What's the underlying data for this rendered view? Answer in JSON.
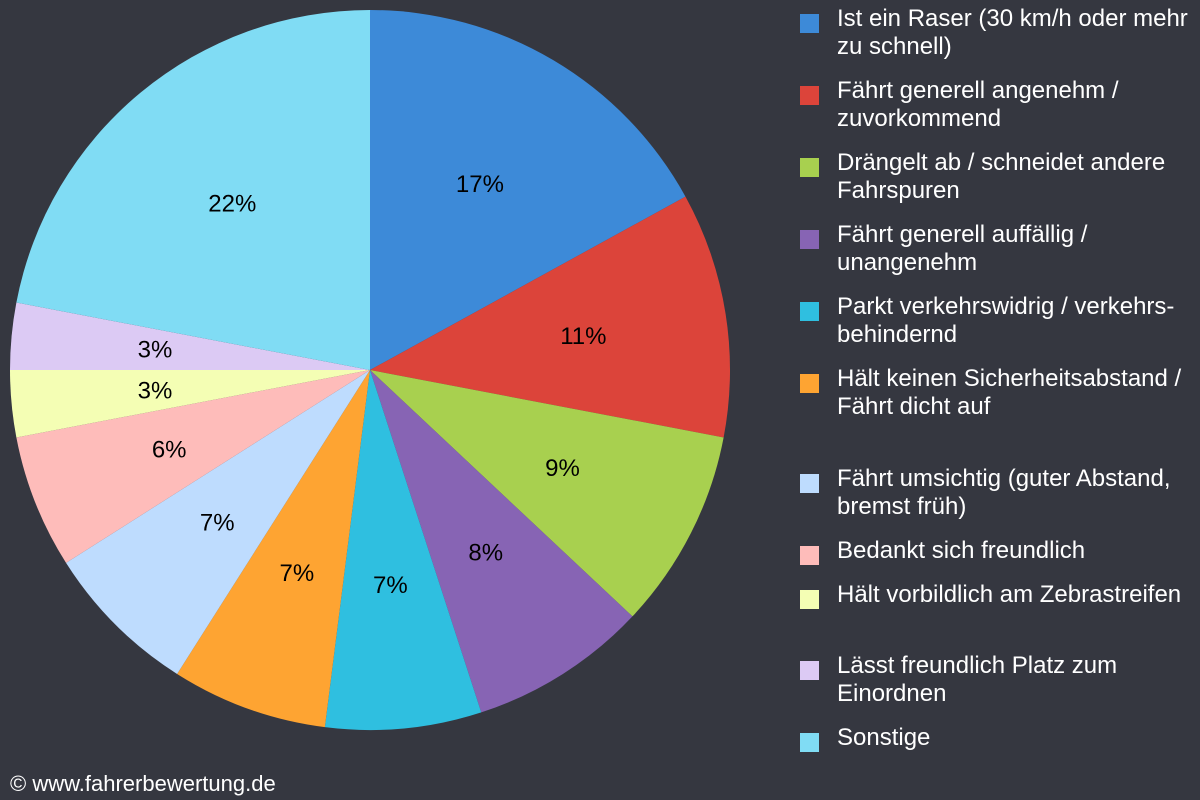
{
  "chart_data": {
    "type": "pie",
    "title": "",
    "legend_position": "right",
    "slices": [
      {
        "name": "Ist ein Raser (30 km/h oder mehr zu schnell)",
        "value": 17,
        "label": "17%",
        "color": "#3d8ad8"
      },
      {
        "name": "Fährt generell angenehm / zuvorkommend",
        "value": 11,
        "label": "11%",
        "color": "#dc443a"
      },
      {
        "name": "Drängelt ab / schneidet andere Fahrspuren",
        "value": 9,
        "label": "9%",
        "color": "#a8d04f"
      },
      {
        "name": "Fährt generell auffällig / unangenehm",
        "value": 8,
        "label": "8%",
        "color": "#8764b4"
      },
      {
        "name": "Parkt verkehrswidrig / verkehrs-behindernd",
        "value": 7,
        "label": "7%",
        "color": "#2fbfe0"
      },
      {
        "name": "Hält keinen Sicherheitsabstand / Fährt dicht auf",
        "value": 7,
        "label": "7%",
        "color": "#fea432"
      },
      {
        "name": "Fährt umsichtig (guter Abstand, bremst früh)",
        "value": 7,
        "label": "7%",
        "color": "#bedcfe"
      },
      {
        "name": "Bedankt sich freundlich",
        "value": 6,
        "label": "6%",
        "color": "#febcba"
      },
      {
        "name": "Hält vorbildlich am Zebrastreifen",
        "value": 3,
        "label": "3%",
        "color": "#f4feb4"
      },
      {
        "name": "Lässt freundlich Platz zum Einordnen",
        "value": 3,
        "label": "3%",
        "color": "#dccaf4"
      },
      {
        "name": "Sonstige",
        "value": 22,
        "label": "22%",
        "color": "#80dcf4"
      }
    ]
  },
  "footer": {
    "copyright": "© www.fahrerbewertung.de"
  }
}
